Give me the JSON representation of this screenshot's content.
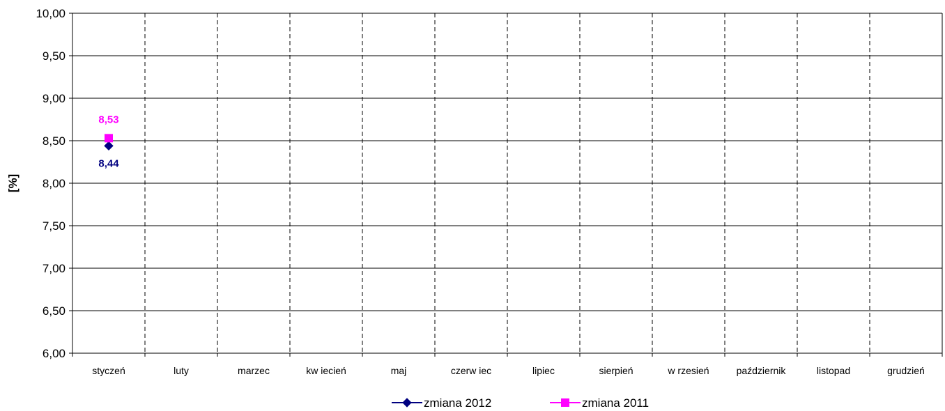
{
  "chart_data": {
    "type": "line",
    "title": "",
    "xlabel": "",
    "ylabel": "[%]",
    "ylim": [
      6.0,
      10.0
    ],
    "yticks": [
      "6,00",
      "6,50",
      "7,00",
      "7,50",
      "8,00",
      "8,50",
      "9,00",
      "9,50",
      "10,00"
    ],
    "ytick_values": [
      6.0,
      6.5,
      7.0,
      7.5,
      8.0,
      8.5,
      9.0,
      9.5,
      10.0
    ],
    "categories": [
      "styczeń",
      "luty",
      "marzec",
      "kw iecień",
      "maj",
      "czerw iec",
      "lipiec",
      "sierpień",
      "w rzesień",
      "październik",
      "listopad",
      "grudzień"
    ],
    "grid": {
      "horizontal": "solid",
      "vertical": "dashed"
    },
    "legend_position": "bottom",
    "series": [
      {
        "name": "zmiana 2012",
        "color": "#000080",
        "marker": "diamond",
        "values": [
          8.44,
          null,
          null,
          null,
          null,
          null,
          null,
          null,
          null,
          null,
          null,
          null
        ],
        "data_labels": [
          "8,44"
        ],
        "label_position": "below"
      },
      {
        "name": "zmiana 2011",
        "color": "#FF00FF",
        "marker": "square",
        "values": [
          8.53,
          null,
          null,
          null,
          null,
          null,
          null,
          null,
          null,
          null,
          null,
          null
        ],
        "data_labels": [
          "8,53"
        ],
        "label_position": "above"
      }
    ]
  }
}
